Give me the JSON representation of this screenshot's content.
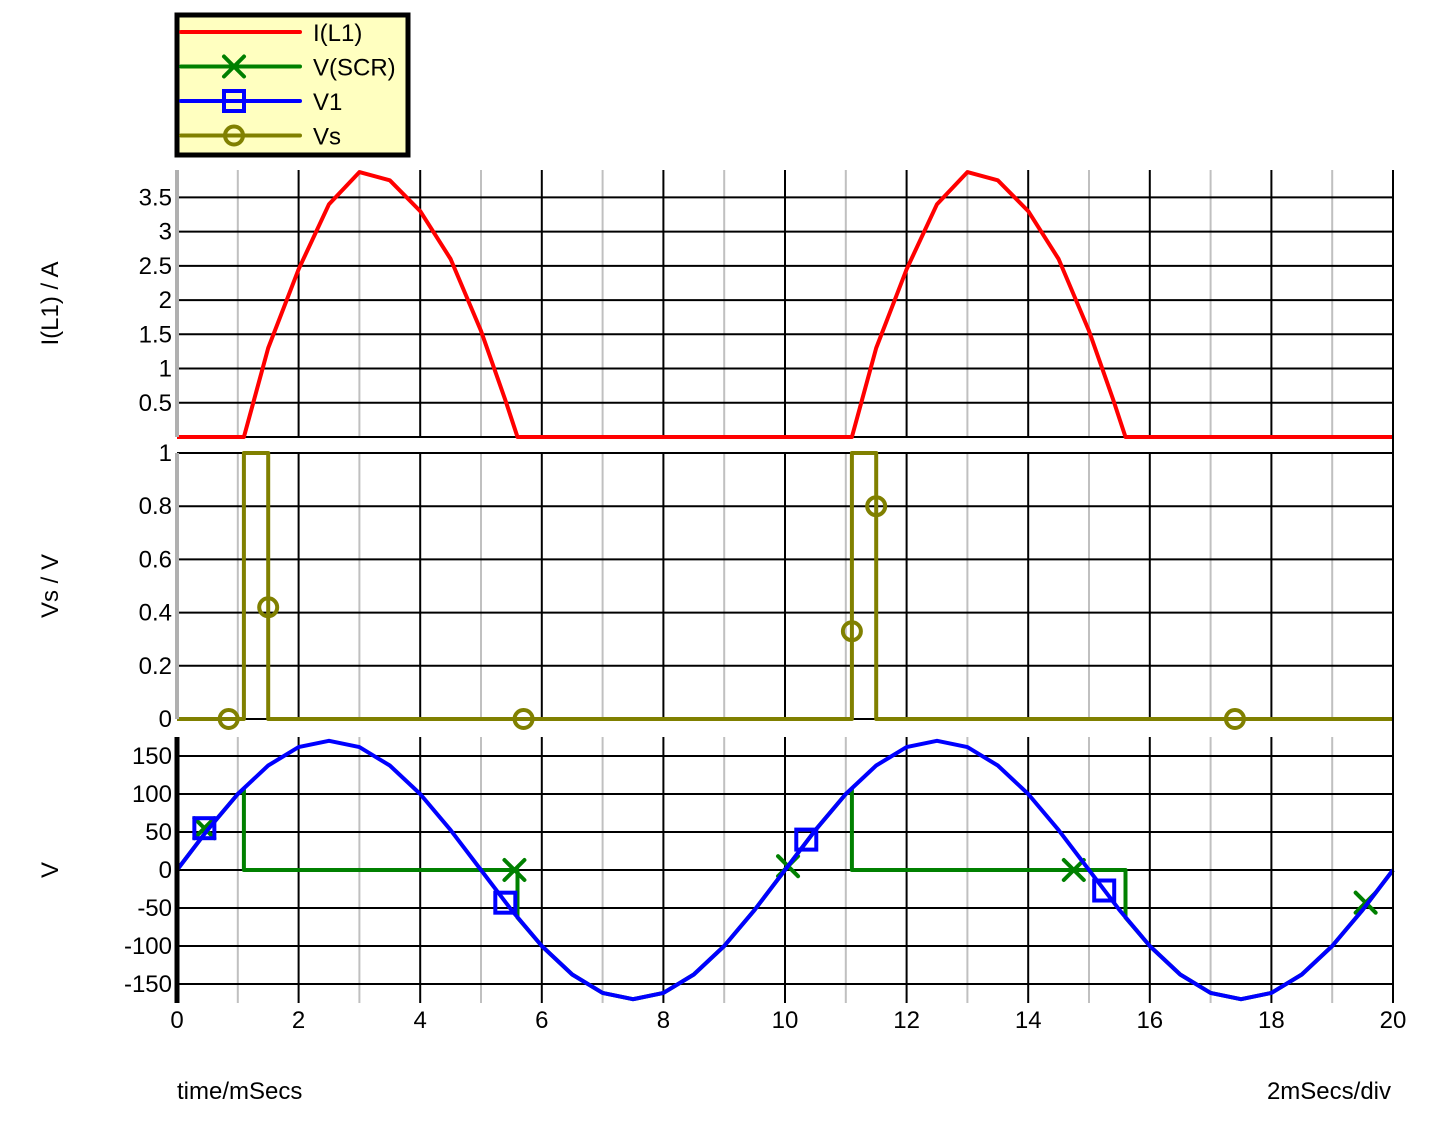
{
  "chart_data": {
    "type": "line",
    "xlabel": "time/mSecs",
    "x_scale_note": "2mSecs/div",
    "xlim": [
      0,
      20
    ],
    "x_ticks": [
      0,
      2,
      4,
      6,
      8,
      10,
      12,
      14,
      16,
      18,
      20
    ],
    "grid": true,
    "legend_placement": "top-left",
    "legend": [
      {
        "name": "I(L1)",
        "color": "#ff0000",
        "marker": "none"
      },
      {
        "name": "V(SCR)",
        "color": "#008000",
        "marker": "cross"
      },
      {
        "name": "V1",
        "color": "#0000ff",
        "marker": "square"
      },
      {
        "name": "Vs",
        "color": "#808000",
        "marker": "circle"
      }
    ],
    "panels": [
      {
        "ylabel": "I(L1) / A",
        "ylim": [
          0,
          3.9
        ],
        "y_ticks": [
          0.5,
          1,
          1.5,
          2,
          2.5,
          3,
          3.5
        ],
        "series": [
          {
            "name": "I(L1)",
            "color": "#ff0000",
            "points": [
              [
                0,
                0
              ],
              [
                1.1,
                0
              ],
              [
                1.5,
                1.3
              ],
              [
                2,
                2.45
              ],
              [
                2.5,
                3.4
              ],
              [
                3,
                3.87
              ],
              [
                3.5,
                3.75
              ],
              [
                4,
                3.3
              ],
              [
                4.5,
                2.6
              ],
              [
                5,
                1.55
              ],
              [
                5.4,
                0.54
              ],
              [
                5.6,
                0
              ],
              [
                11.1,
                0
              ],
              [
                11.5,
                1.3
              ],
              [
                12,
                2.45
              ],
              [
                12.5,
                3.4
              ],
              [
                13,
                3.87
              ],
              [
                13.5,
                3.75
              ],
              [
                14,
                3.3
              ],
              [
                14.5,
                2.6
              ],
              [
                15,
                1.55
              ],
              [
                15.4,
                0.54
              ],
              [
                15.6,
                0
              ],
              [
                20,
                0
              ]
            ],
            "markers": []
          }
        ]
      },
      {
        "ylabel": "Vs / V",
        "ylim": [
          0,
          1
        ],
        "y_ticks": [
          0,
          0.2,
          0.4,
          0.6,
          0.8,
          1
        ],
        "series": [
          {
            "name": "Vs",
            "color": "#808000",
            "points": [
              [
                0,
                0
              ],
              [
                1.1,
                0
              ],
              [
                1.1,
                1
              ],
              [
                1.5,
                1
              ],
              [
                1.5,
                0
              ],
              [
                11.1,
                0
              ],
              [
                11.1,
                1
              ],
              [
                11.5,
                1
              ],
              [
                11.5,
                0
              ],
              [
                20,
                0
              ]
            ],
            "marker": "circle",
            "markers": [
              [
                0.85,
                0
              ],
              [
                1.5,
                0.42
              ],
              [
                5.7,
                0
              ],
              [
                11.1,
                0.33
              ],
              [
                11.5,
                0.8
              ],
              [
                17.4,
                0
              ]
            ]
          }
        ]
      },
      {
        "ylabel": "V",
        "ylim": [
          -175,
          175
        ],
        "y_ticks": [
          150,
          100,
          50,
          0,
          -50,
          -100,
          -150
        ],
        "series": [
          {
            "name": "V(SCR)",
            "color": "#008000",
            "points": [
              [
                0,
                0
              ],
              [
                0.5,
                52.5
              ],
              [
                1,
                100
              ],
              [
                1.1,
                105.6
              ],
              [
                1.1,
                0
              ],
              [
                5.6,
                0
              ],
              [
                5.6,
                -62.6
              ],
              [
                6,
                -100
              ],
              [
                6.5,
                -137.5
              ],
              [
                7,
                -161.7
              ],
              [
                7.5,
                -170
              ],
              [
                8,
                -161.7
              ],
              [
                8.5,
                -137.5
              ],
              [
                9,
                -100
              ],
              [
                9.5,
                -52.5
              ],
              [
                10,
                0
              ],
              [
                10.5,
                52.5
              ],
              [
                11,
                100
              ],
              [
                11.1,
                105.6
              ],
              [
                11.1,
                0
              ],
              [
                15.6,
                0
              ],
              [
                15.6,
                -62.6
              ],
              [
                16,
                -100
              ],
              [
                16.5,
                -137.5
              ],
              [
                17,
                -161.7
              ],
              [
                17.5,
                -170
              ],
              [
                18,
                -161.7
              ],
              [
                18.5,
                -137.5
              ],
              [
                19,
                -100
              ],
              [
                19.5,
                -52.5
              ],
              [
                20,
                0
              ]
            ],
            "marker": "cross",
            "markers": [
              [
                0.45,
                55
              ],
              [
                5.55,
                0
              ],
              [
                10.05,
                5
              ],
              [
                14.75,
                0
              ],
              [
                19.55,
                -43
              ]
            ]
          },
          {
            "name": "V1",
            "color": "#0000ff",
            "points": [
              [
                0,
                0
              ],
              [
                0.5,
                52.5
              ],
              [
                1,
                100
              ],
              [
                1.5,
                137.5
              ],
              [
                2,
                161.7
              ],
              [
                2.5,
                170
              ],
              [
                3,
                161.7
              ],
              [
                3.5,
                137.5
              ],
              [
                4,
                100
              ],
              [
                4.5,
                52.5
              ],
              [
                5,
                0
              ],
              [
                5.5,
                -52.5
              ],
              [
                6,
                -100
              ],
              [
                6.5,
                -137.5
              ],
              [
                7,
                -161.7
              ],
              [
                7.5,
                -170
              ],
              [
                8,
                -161.7
              ],
              [
                8.5,
                -137.5
              ],
              [
                9,
                -100
              ],
              [
                9.5,
                -52.5
              ],
              [
                10,
                0
              ],
              [
                10.5,
                52.5
              ],
              [
                11,
                100
              ],
              [
                11.5,
                137.5
              ],
              [
                12,
                161.7
              ],
              [
                12.5,
                170
              ],
              [
                13,
                161.7
              ],
              [
                13.5,
                137.5
              ],
              [
                14,
                100
              ],
              [
                14.5,
                52.5
              ],
              [
                15,
                0
              ],
              [
                15.5,
                -52.5
              ],
              [
                16,
                -100
              ],
              [
                16.5,
                -137.5
              ],
              [
                17,
                -161.7
              ],
              [
                17.5,
                -170
              ],
              [
                18,
                -161.7
              ],
              [
                18.5,
                -137.5
              ],
              [
                19,
                -100
              ],
              [
                19.5,
                -52.5
              ],
              [
                20,
                0
              ]
            ],
            "marker": "square",
            "markers": [
              [
                0.45,
                55
              ],
              [
                5.4,
                -43
              ],
              [
                10.35,
                40
              ],
              [
                15.25,
                -27
              ]
            ]
          }
        ]
      }
    ]
  }
}
